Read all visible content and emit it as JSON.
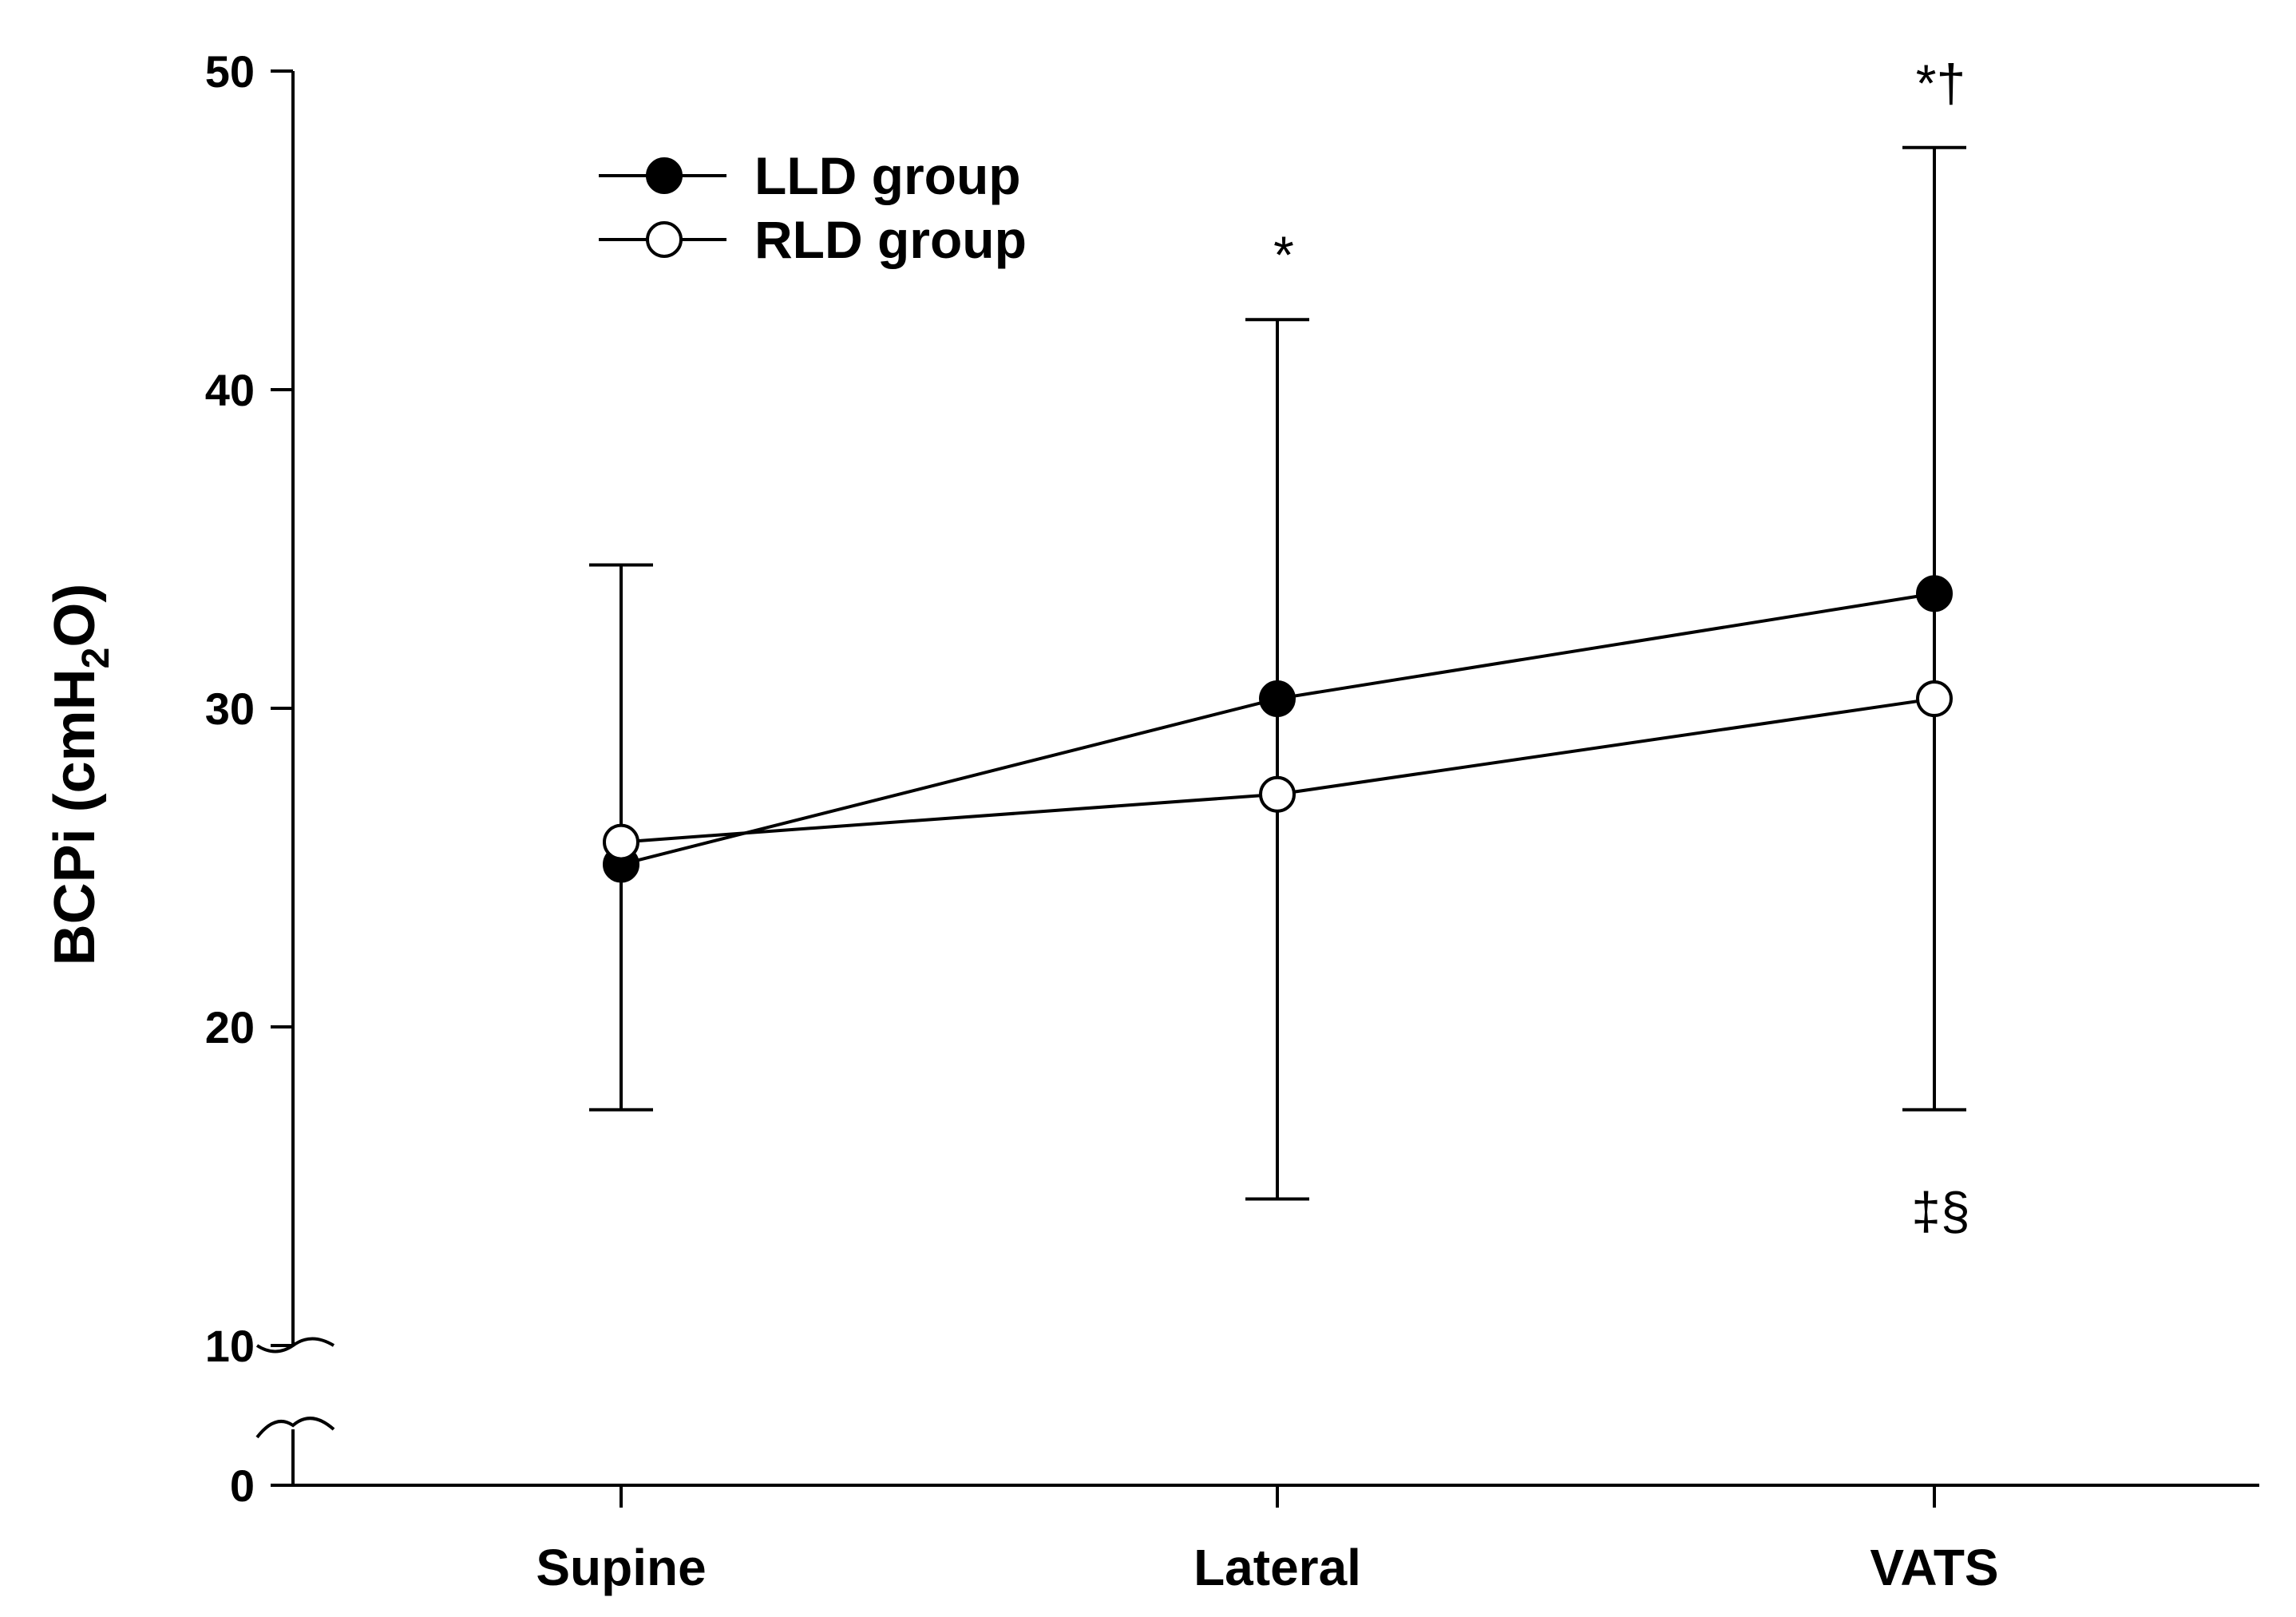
{
  "chart_data": {
    "type": "line",
    "title": "",
    "xlabel": "",
    "ylabel": "BCPi (cmH2O)",
    "ylabel_parts": {
      "main": "BCPi (cmH",
      "sub": "2",
      "tail": "O)"
    },
    "categories": [
      "Supine",
      "Lateral",
      "VATS"
    ],
    "ylim": [
      0,
      50
    ],
    "yticks": [
      0,
      10,
      20,
      30,
      40,
      50
    ],
    "axis_break": [
      0,
      10
    ],
    "series": [
      {
        "name": "LLD group",
        "marker": "filled-circle",
        "values": [
          25.1,
          30.3,
          33.6
        ]
      },
      {
        "name": "RLD group",
        "marker": "open-circle",
        "values": [
          25.8,
          27.3,
          30.3
        ]
      }
    ],
    "error_bars": [
      {
        "category": "Supine",
        "lower": 17.4,
        "upper": 34.5
      },
      {
        "category": "Lateral",
        "lower": 14.6,
        "upper": 42.2
      },
      {
        "category": "VATS",
        "lower": 17.4,
        "upper": 47.6
      }
    ],
    "annotations": [
      {
        "category": "Lateral",
        "text": "*",
        "position": "above"
      },
      {
        "category": "VATS",
        "text": "*†",
        "position": "above"
      },
      {
        "category": "VATS",
        "text": "‡§",
        "position": "below"
      }
    ],
    "legend_position": "top-left"
  }
}
